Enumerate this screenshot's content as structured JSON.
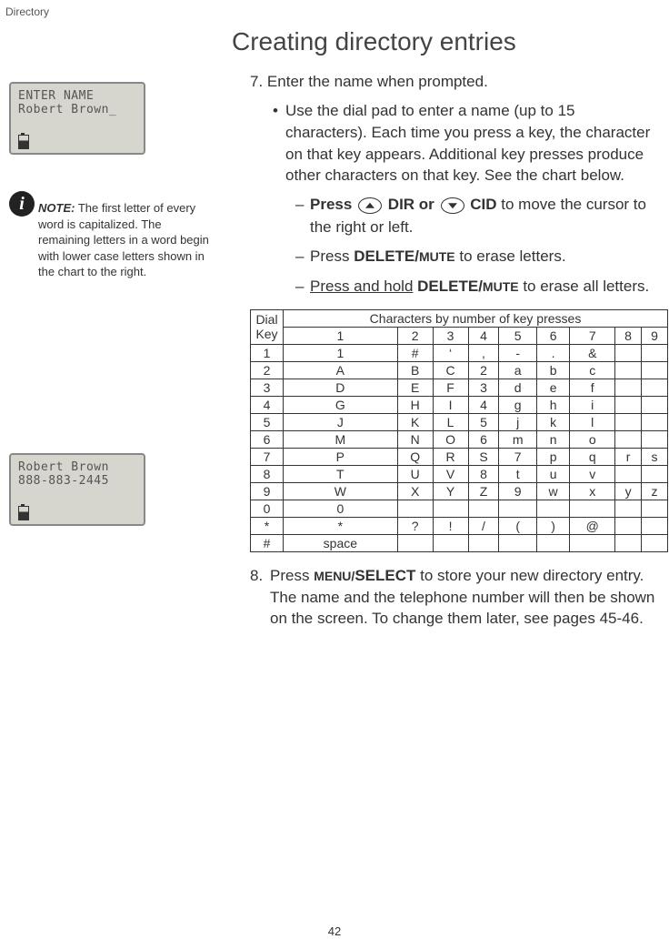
{
  "header": {
    "crumb": "Directory"
  },
  "lcd1": {
    "line1": "ENTER NAME",
    "line2": "Robert Brown_"
  },
  "note": {
    "label": "NOTE:",
    "text": "The first letter of every word is capitalized. The remaining letters in a word begin with lower case letters shown in the chart to the right."
  },
  "lcd2": {
    "line1": "Robert Brown",
    "line2": "888-883-2445"
  },
  "title": "Creating directory entries",
  "step7": {
    "num": "7.",
    "text": "Enter the name when prompted."
  },
  "bullet": "Use the dial pad to enter a name (up to 15 characters). Each time you press a key, the character on that key appears. Additional key presses produce other characters on that key. See the chart below.",
  "sub1": {
    "press": "Press",
    "dir": "DIR or",
    "cid": "CID",
    "tail": "to move the cursor to the right or left."
  },
  "sub2": {
    "press": "Press ",
    "del": "DELETE/",
    "mute": "MUTE",
    "tail": " to erase letters."
  },
  "sub3": {
    "press": "Press and hold",
    "del": " DELETE/",
    "mute": "MUTE",
    "tail": " to erase  all letters."
  },
  "chart": {
    "header_left": "Dial Key",
    "header_top": "Characters by number of key presses",
    "cols": [
      "1",
      "2",
      "3",
      "4",
      "5",
      "6",
      "7",
      "8",
      "9"
    ],
    "rows": [
      {
        "k": "1",
        "c": [
          "1",
          "#",
          "‘",
          ",",
          "-",
          ".",
          "&",
          "",
          ""
        ]
      },
      {
        "k": "2",
        "c": [
          "A",
          "B",
          "C",
          "2",
          "a",
          "b",
          "c",
          "",
          ""
        ]
      },
      {
        "k": "3",
        "c": [
          "D",
          "E",
          "F",
          "3",
          "d",
          "e",
          "f",
          "",
          ""
        ]
      },
      {
        "k": "4",
        "c": [
          "G",
          "H",
          "I",
          "4",
          "g",
          "h",
          "i",
          "",
          ""
        ]
      },
      {
        "k": "5",
        "c": [
          "J",
          "K",
          "L",
          "5",
          "j",
          "k",
          "l",
          "",
          ""
        ]
      },
      {
        "k": "6",
        "c": [
          "M",
          "N",
          "O",
          "6",
          "m",
          "n",
          "o",
          "",
          ""
        ]
      },
      {
        "k": "7",
        "c": [
          "P",
          "Q",
          "R",
          "S",
          "7",
          "p",
          "q",
          "r",
          "s"
        ]
      },
      {
        "k": "8",
        "c": [
          "T",
          "U",
          "V",
          "8",
          "t",
          "u",
          "v",
          "",
          ""
        ]
      },
      {
        "k": "9",
        "c": [
          "W",
          "X",
          "Y",
          "Z",
          "9",
          "w",
          "x",
          "y",
          "z"
        ]
      },
      {
        "k": "0",
        "c": [
          "0",
          "",
          "",
          "",
          "",
          "",
          "",
          "",
          ""
        ]
      },
      {
        "k": "*",
        "c": [
          "*",
          "?",
          "!",
          "/",
          "(",
          ")",
          "@",
          "",
          ""
        ]
      },
      {
        "k": "#",
        "c": [
          "space",
          "",
          "",
          "",
          "",
          "",
          "",
          "",
          ""
        ]
      }
    ]
  },
  "step8": {
    "pre": "Press ",
    "menu": "MENU/",
    "select": "SELECT",
    "tail": " to store your new directory entry. The name and the telephone number will then be shown on the screen. To change them later, see pages 45-46."
  },
  "page": "42"
}
